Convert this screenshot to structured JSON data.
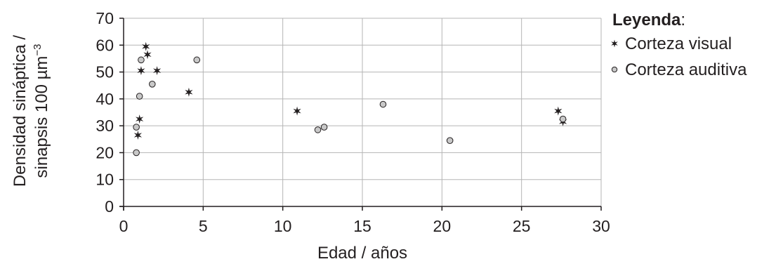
{
  "chart_data": {
    "type": "scatter",
    "xlabel": "Edad / años",
    "ylabel_line1": "Densidad sináptica /",
    "ylabel_line2": "sinapsis 100 µm",
    "ylabel_superscript": "−3",
    "xlim": [
      0,
      30
    ],
    "ylim": [
      0,
      70
    ],
    "xticks": [
      0,
      5,
      10,
      15,
      20,
      25,
      30
    ],
    "yticks": [
      0,
      10,
      20,
      30,
      40,
      50,
      60,
      70
    ],
    "grid": true,
    "legend_placement": "right",
    "legend": {
      "title": "Leyenda",
      "title_suffix": ":"
    },
    "series": [
      {
        "name": "Corteza visual",
        "marker": "star",
        "color": "#231f20",
        "points": [
          [
            1.4,
            59.5
          ],
          [
            1.5,
            56.5
          ],
          [
            1.1,
            50.5
          ],
          [
            2.1,
            50.5
          ],
          [
            1.0,
            32.5
          ],
          [
            0.9,
            26.5
          ],
          [
            4.1,
            42.5
          ],
          [
            10.9,
            35.5
          ],
          [
            27.3,
            35.5
          ],
          [
            27.6,
            31.5
          ]
        ]
      },
      {
        "name": "Corteza auditiva",
        "marker": "circle",
        "color": "#c8c8c8",
        "points": [
          [
            1.1,
            54.5
          ],
          [
            4.6,
            54.5
          ],
          [
            1.8,
            45.5
          ],
          [
            1.0,
            41.0
          ],
          [
            0.8,
            29.5
          ],
          [
            0.8,
            20.0
          ],
          [
            12.2,
            28.5
          ],
          [
            12.6,
            29.5
          ],
          [
            16.3,
            38.0
          ],
          [
            20.5,
            24.5
          ],
          [
            27.6,
            32.5
          ]
        ]
      }
    ]
  }
}
